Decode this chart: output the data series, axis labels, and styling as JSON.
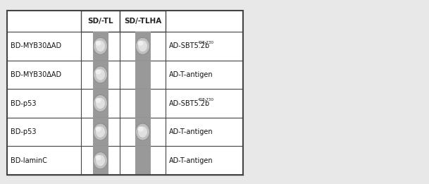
{
  "outer_background": "#e8e8e8",
  "table_background": "#ffffff",
  "gray_col_color": "#999999",
  "header_row_labels": [
    "SD/-TL",
    "SD/-TLHA"
  ],
  "row_labels_left": [
    "BD-MYB30ΔAD",
    "BD-MYB30ΔAD",
    "BD-p53",
    "BD-p53",
    "BD-laminC"
  ],
  "row_labels_right": [
    "AD-SBT5.2b",
    "AD-T-antigen",
    "AD-SBT5.2b",
    "AD-T-antigen",
    "AD-T-antigen"
  ],
  "row_labels_right_superscript": [
    "428-730",
    "",
    "428-730",
    "",
    ""
  ],
  "spots": [
    [
      true,
      true
    ],
    [
      true,
      false
    ],
    [
      true,
      false
    ],
    [
      true,
      true
    ],
    [
      true,
      false
    ]
  ],
  "figwidth": 6.09,
  "figheight": 2.61,
  "dpi": 100
}
